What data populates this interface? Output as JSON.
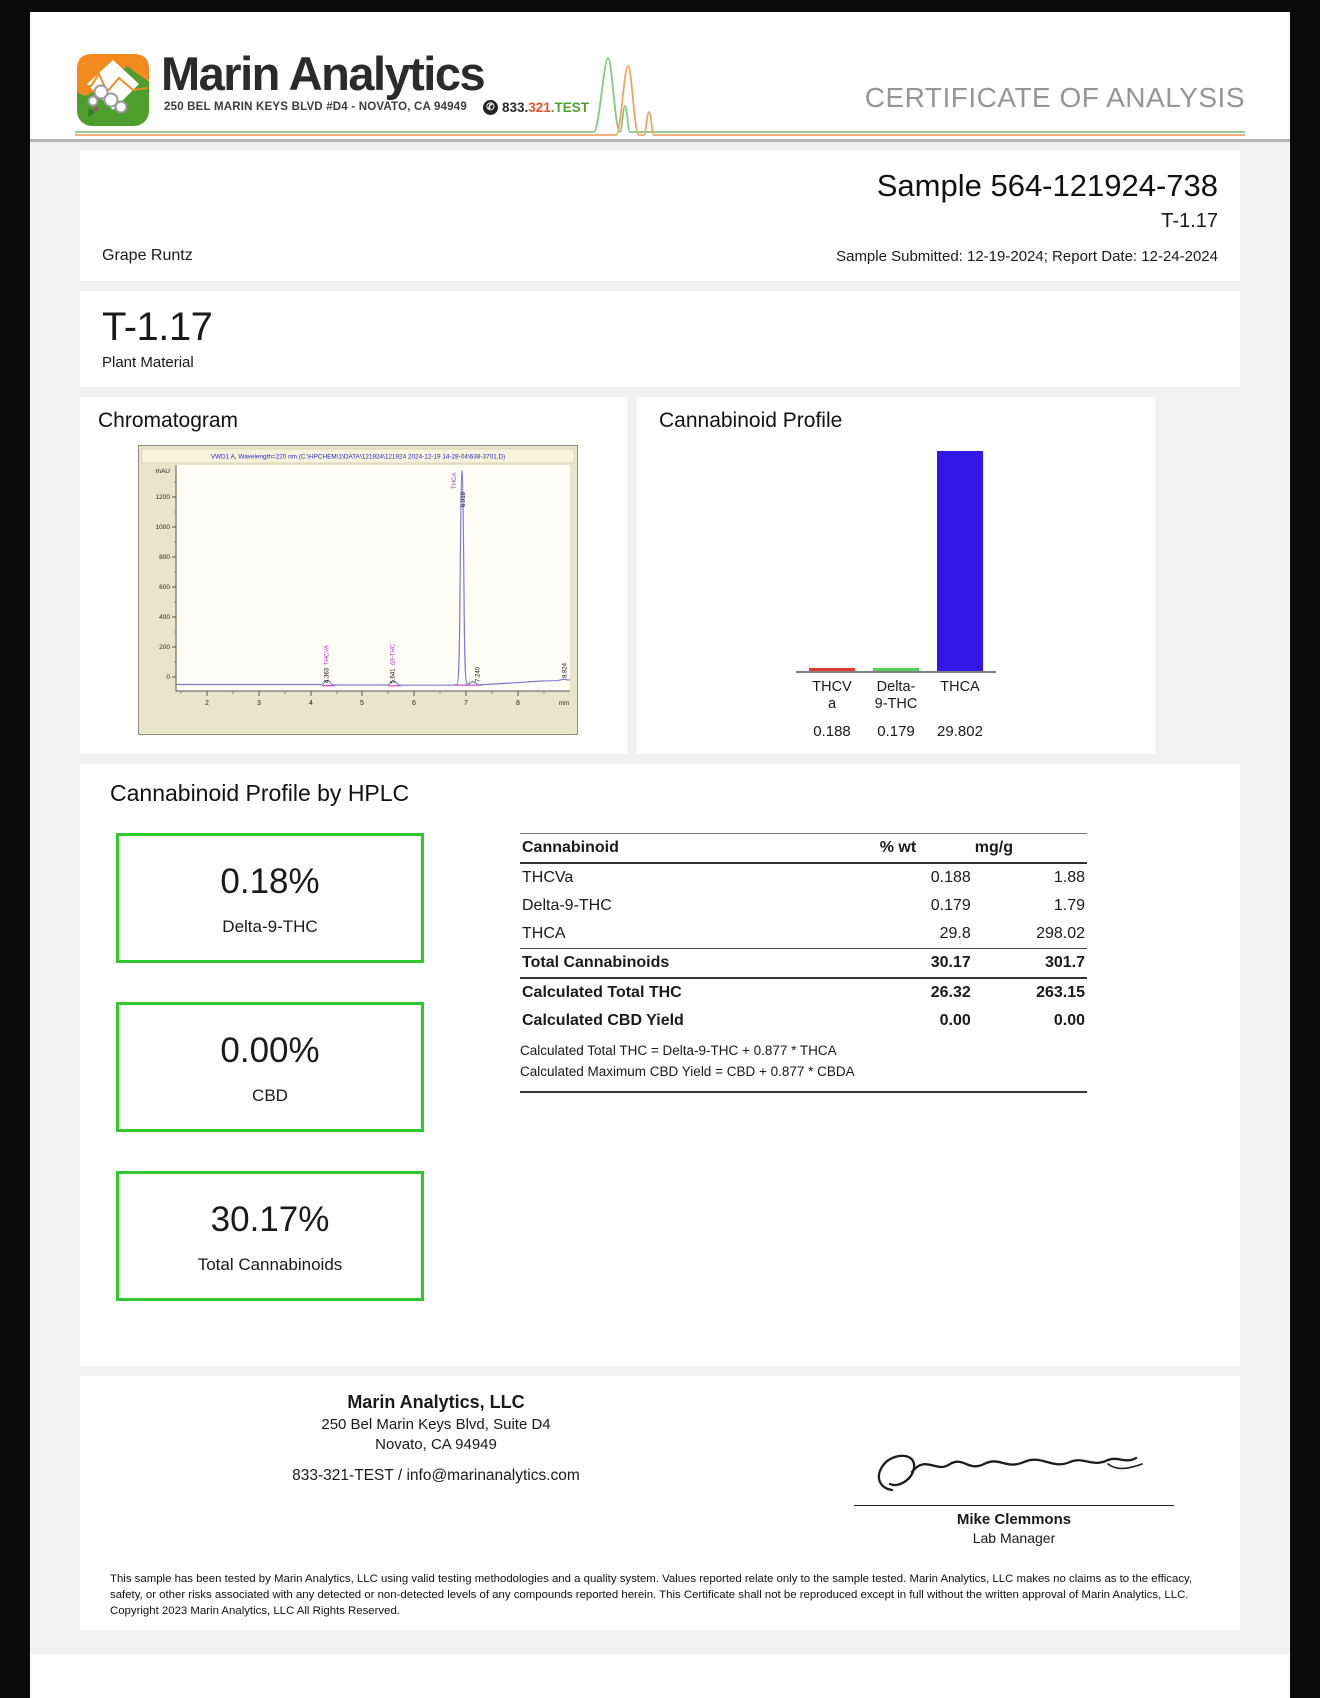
{
  "header": {
    "brand_name": "Marin Analytics",
    "brand_address": "250 BEL MARIN KEYS BLVD #D4 - NOVATO, CA 94949",
    "phone_part1": "833.",
    "phone_part2": "321",
    "phone_part3": ".TEST",
    "certificate_title": "CERTIFICATE OF ANALYSIS"
  },
  "sample_info": {
    "sample_id": "Sample 564-121924-738",
    "test_code": "T-1.17",
    "strain_name": "Grape Runtz",
    "dates_line": "Sample Submitted: 12-19-2024;  Report Date: 12-24-2024"
  },
  "sample_type": {
    "code": "T-1.17",
    "material": "Plant Material"
  },
  "chromatogram": {
    "heading": "Chromatogram",
    "instrument_line": "VWD1 A, Wavelength=220 nm (C:\\HPCHEM\\1\\DATA\\121924\\121924 2024-12-19 14-28-04\\638-3701.D)",
    "y_unit": "mAU",
    "y_ticks": [
      "1200",
      "1000",
      "800",
      "600",
      "400",
      "200",
      "0"
    ],
    "x_ticks": [
      "2",
      "3",
      "4",
      "5",
      "6",
      "7",
      "8"
    ],
    "x_unit": "min",
    "peaks": [
      {
        "rt": "4.363",
        "name": "THCVA"
      },
      {
        "rt": "5.641",
        "name": "Δ9-THC"
      },
      {
        "rt": "6.918",
        "name": "THCA"
      },
      {
        "rt": "7.240",
        "name": ""
      },
      {
        "rt": "8.924",
        "name": ""
      }
    ]
  },
  "profile_chart": {
    "heading": "Cannabinoid Profile",
    "bars": [
      {
        "label1": "THCV",
        "label2": "a",
        "value": "0.188"
      },
      {
        "label1": "Delta-",
        "label2": "9-THC",
        "value": "0.179"
      },
      {
        "label1": "THCA",
        "label2": "",
        "value": "29.802"
      }
    ]
  },
  "hplc": {
    "heading": "Cannabinoid Profile by HPLC",
    "boxes": [
      {
        "value": "0.18%",
        "label": "Delta-9-THC"
      },
      {
        "value": "0.00%",
        "label": "CBD"
      },
      {
        "value": "30.17%",
        "label": "Total Cannabinoids"
      }
    ],
    "table": {
      "headers": [
        "Cannabinoid",
        "% wt",
        "mg/g"
      ],
      "rows": [
        {
          "name": "THCVa",
          "wt": "0.188",
          "mg": "1.88"
        },
        {
          "name": "Delta-9-THC",
          "wt": "0.179",
          "mg": "1.79"
        },
        {
          "name": "THCA",
          "wt": "29.8",
          "mg": "298.02"
        }
      ],
      "total_row": {
        "name": "Total Cannabinoids",
        "wt": "30.17",
        "mg": "301.7"
      },
      "calc_rows": [
        {
          "name": "Calculated Total THC",
          "wt": "26.32",
          "mg": "263.15"
        },
        {
          "name": "Calculated CBD Yield",
          "wt": "0.00",
          "mg": "0.00"
        }
      ],
      "footnotes": [
        "Calculated Total THC = Delta-9-THC + 0.877 * THCA",
        "Calculated Maximum CBD Yield = CBD + 0.877 * CBDA"
      ]
    }
  },
  "footer": {
    "company": "Marin Analytics, LLC",
    "address1": "250 Bel Marin Keys Blvd, Suite D4",
    "address2": "Novato, CA 94949",
    "contact": "833-321-TEST / info@marinanalytics.com",
    "signer_name": "Mike Clemmons",
    "signer_title": "Lab Manager",
    "disclaimer": "This sample has been tested by Marin Analytics, LLC using valid testing methodologies and a quality system.  Values reported relate only to the sample tested.  Marin Analytics, LLC makes no claims as to the efficacy, safety, or other risks associated with any detected or non-detected levels of any compounds reported herein.  This Certificate shall not be reproduced except in full without the written approval of Marin Analytics, LLC.      Copyright 2023 Marin Analytics, LLC All Rights Reserved."
  },
  "chart_data": [
    {
      "type": "bar",
      "title": "Cannabinoid Profile",
      "categories": [
        "THCVa",
        "Delta-9-THC",
        "THCA"
      ],
      "values": [
        0.188,
        0.179,
        29.802
      ],
      "unit": "% wt",
      "colors": [
        "#e23a2c",
        "#54d05a",
        "#3317e6"
      ],
      "ylim": [
        0,
        30
      ],
      "legend": "none",
      "grid": false
    },
    {
      "type": "line",
      "title": "HPLC chromatogram VWD1 A, Wavelength=220 nm",
      "xlabel": "min",
      "ylabel": "mAU",
      "xlim": [
        1.4,
        9.0
      ],
      "ylim": [
        -60,
        1350
      ],
      "y_ticks": [
        0,
        200,
        400,
        600,
        800,
        1000,
        1200
      ],
      "x_ticks": [
        2,
        3,
        4,
        5,
        6,
        7,
        8
      ],
      "peaks": [
        {
          "rt": 4.363,
          "name": "THCVA",
          "height_mau": 20
        },
        {
          "rt": 5.641,
          "name": "Δ9-THC",
          "height_mau": 18
        },
        {
          "rt": 6.918,
          "name": "THCA",
          "height_mau": 1370
        },
        {
          "rt": 7.24,
          "name": "",
          "height_mau": 22
        },
        {
          "rt": 8.924,
          "name": "",
          "height_mau": 12
        }
      ]
    }
  ]
}
